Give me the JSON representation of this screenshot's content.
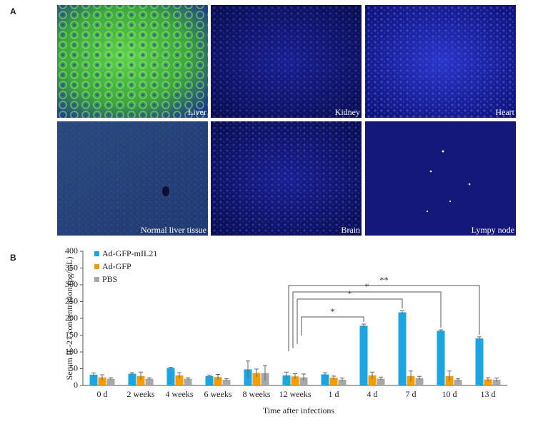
{
  "panel_a": {
    "label": "A",
    "images": [
      "Liver",
      "Kidney",
      "Heart",
      "Normal liver tissue",
      "Brain",
      "Lympy node"
    ]
  },
  "panel_b": {
    "label": "B"
  },
  "chart_data": {
    "type": "bar",
    "ylabel": "Serum IL-21 concentration (pg/mL)",
    "xlabel": "Time after infections",
    "categories": [
      "0 d",
      "2 weeks",
      "4 weeks",
      "6 weeks",
      "8 weeks",
      "12 weeks",
      "1 d",
      "4 d",
      "7 d",
      "10 d",
      "13 d"
    ],
    "series": [
      {
        "name": "Ad-GFP-mIL21",
        "color": "#1ba6e2",
        "values": [
          32,
          35,
          52,
          28,
          48,
          30,
          33,
          178,
          218,
          163,
          140
        ],
        "errors": [
          5,
          3,
          2,
          3,
          25,
          10,
          5,
          5,
          5,
          3,
          5
        ]
      },
      {
        "name": "Ad-GFP",
        "color": "#f59c00",
        "values": [
          24,
          28,
          30,
          25,
          37,
          27,
          23,
          30,
          28,
          28,
          18
        ],
        "errors": [
          8,
          12,
          8,
          8,
          12,
          8,
          5,
          10,
          15,
          15,
          5
        ]
      },
      {
        "name": "PBS",
        "color": "#a8a8a8",
        "values": [
          20,
          20,
          20,
          17,
          37,
          24,
          17,
          20,
          22,
          17,
          17
        ],
        "errors": [
          3,
          3,
          3,
          3,
          22,
          10,
          5,
          5,
          5,
          3,
          5
        ]
      }
    ],
    "ylim": [
      0,
      400
    ],
    "yticks": [
      0,
      50,
      100,
      150,
      200,
      250,
      300,
      350,
      400
    ],
    "legend": "upper left",
    "significance": [
      {
        "from": 5,
        "to": 7,
        "label": "*"
      },
      {
        "from": 5,
        "to": 8,
        "label": "*"
      },
      {
        "from": 5,
        "to": 9,
        "label": "*"
      },
      {
        "from": 5,
        "to": 10,
        "label": "**"
      }
    ]
  }
}
